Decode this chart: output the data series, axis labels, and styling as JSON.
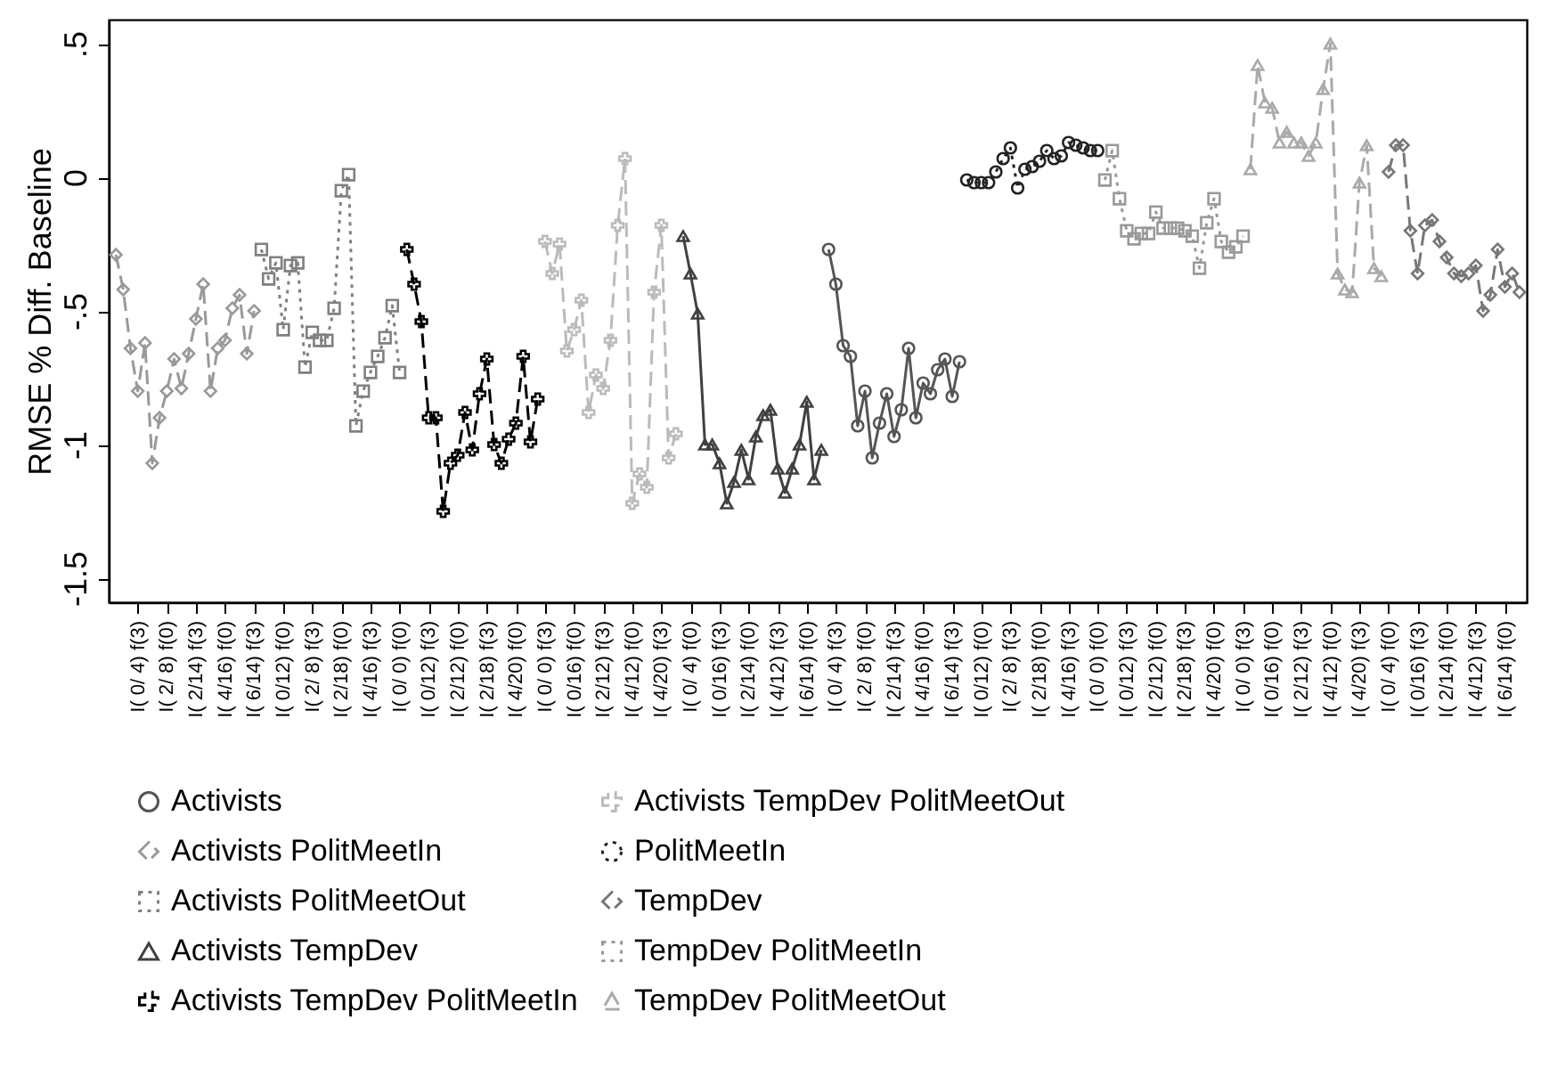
{
  "chart_data": {
    "type": "line",
    "ylabel": "RMSE % Diff. Baseline",
    "legend": "bottom",
    "categories": [
      null,
      null,
      null,
      "I( 0/ 4) f(3)",
      null,
      null,
      null,
      "I( 2/ 8) f(0)",
      null,
      null,
      null,
      "I( 2/14) f(3)",
      null,
      null,
      null,
      "I( 4/16) f(0)",
      null,
      null,
      null,
      "I( 6/14) f(3)",
      null,
      null,
      null,
      "I( 0/12) f(0)",
      null,
      null,
      null,
      "I( 2/ 8) f(3)",
      null,
      null,
      null,
      "I( 2/18) f(0)",
      null,
      null,
      null,
      "I( 4/16) f(3)",
      null,
      null,
      null,
      "I( 0/ 0) f(0)",
      null,
      null,
      null,
      "I( 0/12) f(3)",
      null,
      null,
      null,
      "I( 2/12) f(0)",
      null,
      null,
      null,
      "I( 2/18) f(3)",
      null,
      null,
      null,
      "I( 4/20) f(0)",
      null,
      null,
      null,
      "I( 0/ 0) f(3)",
      null,
      null,
      null,
      "I( 0/16) f(0)",
      null,
      null,
      null,
      "I( 2/12) f(3)",
      null,
      null,
      null,
      "I( 4/12) f(0)",
      null,
      null,
      null,
      "I( 4/20) f(3)",
      null,
      null,
      null,
      "I( 0/ 4) f(0)",
      null,
      null,
      null,
      "I( 0/16) f(3)",
      null,
      null,
      null,
      "I( 2/14) f(0)",
      null,
      null,
      null,
      "I( 4/12) f(3)",
      null,
      null,
      null,
      "I( 6/14) f(0)",
      null,
      null,
      null,
      "I( 0/ 4) f(3)",
      null,
      null,
      null,
      "I( 2/ 8) f(0)",
      null,
      null,
      null,
      "I( 2/14) f(3)",
      null,
      null,
      null,
      "I( 4/16) f(0)",
      null,
      null,
      null,
      "I( 6/14) f(3)",
      null,
      null,
      null,
      "I( 0/12) f(0)",
      null,
      null,
      null,
      "I( 2/ 8) f(3)",
      null,
      null,
      null,
      "I( 2/18) f(0)",
      null,
      null,
      null,
      "I( 4/16) f(3)",
      null,
      null,
      null,
      "I( 0/ 0) f(0)",
      null,
      null,
      null,
      "I( 0/12) f(3)",
      null,
      null,
      null,
      "I( 2/12) f(0)",
      null,
      null,
      null,
      "I( 2/18) f(3)",
      null,
      null,
      null,
      "I( 4/20) f(0)",
      null,
      null,
      null,
      "I( 0/ 0) f(3)",
      null,
      null,
      null,
      "I( 0/16) f(0)",
      null,
      null,
      null,
      "I( 2/12) f(3)",
      null,
      null,
      null,
      "I( 4/12) f(0)",
      null,
      null,
      null,
      "I( 4/20) f(3)",
      null,
      null,
      null,
      "I( 0/ 4) f(0)",
      null,
      null,
      null,
      "I( 0/16) f(3)",
      null,
      null,
      null,
      "I( 2/14) f(0)",
      null,
      null,
      null,
      "I( 4/12) f(3)",
      null,
      null,
      null,
      "I( 6/14) f(0)",
      null,
      null
    ],
    "ylim": [
      -1.59,
      0.59
    ],
    "yticks": [
      {
        "value": 0.5,
        "label": ".5"
      },
      {
        "value": 0,
        "label": "0"
      },
      {
        "value": -0.5,
        "label": "-.5"
      },
      {
        "value": -1,
        "label": "-1"
      },
      {
        "value": -1.5,
        "label": "-1.5"
      }
    ],
    "series": [
      {
        "name": "Activists",
        "color": "#555555",
        "marker": "circle",
        "line_style": "solid",
        "values": [
          null,
          null,
          null,
          null,
          null,
          null,
          null,
          null,
          null,
          null,
          null,
          null,
          null,
          null,
          null,
          null,
          null,
          null,
          null,
          null,
          null,
          null,
          null,
          null,
          null,
          null,
          null,
          null,
          null,
          null,
          null,
          null,
          null,
          null,
          null,
          null,
          null,
          null,
          null,
          null,
          null,
          null,
          null,
          null,
          null,
          null,
          null,
          null,
          null,
          null,
          null,
          null,
          null,
          null,
          null,
          null,
          null,
          null,
          null,
          null,
          null,
          null,
          null,
          null,
          null,
          null,
          null,
          null,
          null,
          null,
          null,
          null,
          null,
          null,
          null,
          null,
          null,
          null,
          null,
          null,
          null,
          null,
          null,
          null,
          null,
          null,
          null,
          null,
          null,
          null,
          null,
          null,
          null,
          null,
          null,
          null,
          null,
          null,
          -0.27,
          -0.4,
          -0.63,
          -0.67,
          -0.93,
          -0.8,
          -1.05,
          -0.92,
          -0.81,
          -0.97,
          -0.87,
          -0.64,
          -0.9,
          -0.77,
          -0.81,
          -0.72,
          -0.68,
          -0.82,
          -0.69,
          null,
          null,
          null,
          null,
          null,
          null,
          null,
          null,
          null,
          null,
          null,
          null,
          null,
          null,
          null,
          null,
          null,
          null,
          null,
          null,
          null,
          null,
          null,
          null,
          null,
          null,
          null,
          null,
          null,
          null,
          null,
          null,
          null,
          null,
          null,
          null,
          null,
          null,
          null,
          null,
          null,
          null,
          null,
          null,
          null,
          null,
          null,
          null,
          null,
          null,
          null,
          null,
          null,
          null,
          null,
          null,
          null,
          null,
          null,
          null,
          null,
          null,
          null,
          null,
          null,
          null,
          null,
          null,
          null,
          null,
          null,
          null,
          null,
          null,
          null,
          null,
          null
        ]
      },
      {
        "name": "Activists PolitMeetIn",
        "color": "#999999",
        "marker": "diamond",
        "line_style": "dashed",
        "values": [
          -0.29,
          -0.42,
          -0.64,
          -0.8,
          -0.62,
          -1.07,
          -0.9,
          -0.8,
          -0.68,
          -0.79,
          -0.66,
          -0.53,
          -0.4,
          -0.8,
          -0.64,
          -0.61,
          -0.49,
          -0.44,
          -0.66,
          -0.5,
          null,
          null,
          null,
          null,
          null,
          null,
          null,
          null,
          null,
          null,
          null,
          null,
          null,
          null,
          null,
          null,
          null,
          null,
          null,
          null,
          null,
          null,
          null,
          null,
          null,
          null,
          null,
          null,
          null,
          null,
          null,
          null,
          null,
          null,
          null,
          null,
          null,
          null,
          null,
          null,
          null,
          null,
          null,
          null,
          null,
          null,
          null,
          null,
          null,
          null,
          null,
          null,
          null,
          null,
          null,
          null,
          null,
          null,
          null,
          null,
          null,
          null,
          null,
          null,
          null,
          null,
          null,
          null,
          null,
          null,
          null,
          null,
          null,
          null,
          null,
          null,
          null,
          null,
          null,
          null,
          null,
          null,
          null,
          null,
          null,
          null,
          null,
          null,
          null,
          null,
          null,
          null,
          null,
          null,
          null,
          null,
          null,
          null,
          null,
          null,
          null,
          null,
          null,
          null,
          null,
          null,
          null,
          null,
          null,
          null,
          null,
          null,
          null,
          null,
          null,
          null,
          null,
          null,
          null,
          null,
          null,
          null,
          null,
          null,
          null,
          null,
          null,
          null,
          null,
          null,
          null,
          null,
          null,
          null,
          null,
          null,
          null,
          null,
          null,
          null,
          null,
          null,
          null,
          null,
          null,
          null,
          null,
          null,
          null,
          null,
          null,
          null,
          null,
          null,
          null,
          null,
          null,
          null,
          null,
          null,
          null,
          null,
          null,
          null,
          null,
          null,
          null,
          null,
          null,
          null,
          null,
          null,
          null,
          null
        ]
      },
      {
        "name": "Activists PolitMeetOut",
        "color": "#808080",
        "marker": "square",
        "line_style": "dotted",
        "values": [
          null,
          null,
          null,
          null,
          null,
          null,
          null,
          null,
          null,
          null,
          null,
          null,
          null,
          null,
          null,
          null,
          null,
          null,
          null,
          null,
          -0.27,
          -0.38,
          -0.32,
          -0.57,
          -0.33,
          -0.32,
          -0.71,
          -0.58,
          -0.61,
          -0.61,
          -0.49,
          -0.05,
          0.01,
          -0.93,
          -0.8,
          -0.73,
          -0.67,
          -0.6,
          -0.48,
          -0.73,
          null,
          null,
          null,
          null,
          null,
          null,
          null,
          null,
          null,
          null,
          null,
          null,
          null,
          null,
          null,
          null,
          null,
          null,
          null,
          null,
          null,
          null,
          null,
          null,
          null,
          null,
          null,
          null,
          null,
          null,
          null,
          null,
          null,
          null,
          null,
          null,
          null,
          null,
          null,
          null,
          null,
          null,
          null,
          null,
          null,
          null,
          null,
          null,
          null,
          null,
          null,
          null,
          null,
          null,
          null,
          null,
          null,
          null,
          null,
          null,
          null,
          null,
          null,
          null,
          null,
          null,
          null,
          null,
          null,
          null,
          null,
          null,
          null,
          null,
          null,
          null,
          null,
          null,
          null,
          null,
          null,
          null,
          null,
          null,
          null,
          null,
          null,
          null,
          null,
          null,
          null,
          null,
          null,
          null,
          null,
          null,
          null,
          null,
          null,
          null,
          null,
          null,
          null,
          null,
          null,
          null,
          null,
          null,
          null,
          null,
          null,
          null,
          null,
          null,
          null,
          null,
          null,
          null,
          null,
          null,
          null,
          null,
          null,
          null,
          null,
          null,
          null,
          null,
          null,
          null,
          null,
          null,
          null,
          null,
          null,
          null,
          null,
          null,
          null,
          null,
          null,
          null,
          null,
          null,
          null,
          null,
          null,
          null,
          null,
          null,
          null,
          null,
          null,
          null
        ]
      },
      {
        "name": "Activists TempDev",
        "color": "#404040",
        "marker": "triangle",
        "line_style": "solid",
        "values": [
          null,
          null,
          null,
          null,
          null,
          null,
          null,
          null,
          null,
          null,
          null,
          null,
          null,
          null,
          null,
          null,
          null,
          null,
          null,
          null,
          null,
          null,
          null,
          null,
          null,
          null,
          null,
          null,
          null,
          null,
          null,
          null,
          null,
          null,
          null,
          null,
          null,
          null,
          null,
          null,
          null,
          null,
          null,
          null,
          null,
          null,
          null,
          null,
          null,
          null,
          null,
          null,
          null,
          null,
          null,
          null,
          null,
          null,
          null,
          null,
          null,
          null,
          null,
          null,
          null,
          null,
          null,
          null,
          null,
          null,
          null,
          null,
          null,
          null,
          null,
          null,
          null,
          null,
          -0.22,
          -0.36,
          -0.51,
          -1.0,
          -1.0,
          -1.07,
          -1.22,
          -1.14,
          -1.02,
          -1.13,
          -0.97,
          -0.89,
          -0.87,
          -1.09,
          -1.18,
          -1.09,
          -1.0,
          -0.84,
          -1.13,
          -1.02,
          null,
          null,
          null,
          null,
          null,
          null,
          null,
          null,
          null,
          null,
          null,
          null,
          null,
          null,
          null,
          null,
          null,
          null,
          null,
          null,
          null,
          null,
          null,
          null,
          null,
          null,
          null,
          null,
          null,
          null,
          null,
          null,
          null,
          null,
          null,
          null,
          null,
          null,
          null,
          null,
          null,
          null,
          null,
          null,
          null,
          null,
          null,
          null,
          null,
          null,
          null,
          null,
          null,
          null,
          null,
          null,
          null,
          null,
          null,
          null,
          null,
          null,
          null,
          null,
          null,
          null,
          null,
          null,
          null,
          null,
          null,
          null,
          null,
          null,
          null,
          null,
          null,
          null,
          null,
          null,
          null,
          null,
          null,
          null,
          null,
          null,
          null,
          null,
          null,
          null,
          null,
          null,
          null,
          null,
          null,
          null
        ]
      },
      {
        "name": "Activists TempDev PolitMeetIn",
        "color": "#000000",
        "marker": "cross",
        "line_style": "dashed",
        "values": [
          null,
          null,
          null,
          null,
          null,
          null,
          null,
          null,
          null,
          null,
          null,
          null,
          null,
          null,
          null,
          null,
          null,
          null,
          null,
          null,
          null,
          null,
          null,
          null,
          null,
          null,
          null,
          null,
          null,
          null,
          null,
          null,
          null,
          null,
          null,
          null,
          null,
          null,
          null,
          null,
          -0.27,
          -0.4,
          -0.54,
          -0.9,
          -0.9,
          -1.25,
          -1.07,
          -1.04,
          -0.88,
          -1.02,
          -0.81,
          -0.68,
          -1.0,
          -1.07,
          -0.98,
          -0.92,
          -0.67,
          -0.99,
          -0.83,
          null,
          null,
          null,
          null,
          null,
          null,
          null,
          null,
          null,
          null,
          null,
          null,
          null,
          null,
          null,
          null,
          null,
          null,
          null,
          null,
          null,
          null,
          null,
          null,
          null,
          null,
          null,
          null,
          null,
          null,
          null,
          null,
          null,
          null,
          null,
          null,
          null,
          null,
          null,
          null,
          null,
          null,
          null,
          null,
          null,
          null,
          null,
          null,
          null,
          null,
          null,
          null,
          null,
          null,
          null,
          null,
          null,
          null,
          null,
          null,
          null,
          null,
          null,
          null,
          null,
          null,
          null,
          null,
          null,
          null,
          null,
          null,
          null,
          null,
          null,
          null,
          null,
          null,
          null,
          null,
          null,
          null,
          null,
          null,
          null,
          null,
          null,
          null,
          null,
          null,
          null,
          null,
          null,
          null,
          null,
          null,
          null,
          null,
          null,
          null,
          null,
          null,
          null,
          null,
          null,
          null,
          null,
          null,
          null,
          null,
          null,
          null,
          null,
          null,
          null,
          null,
          null,
          null,
          null,
          null,
          null,
          null,
          null,
          null,
          null,
          null,
          null,
          null,
          null,
          null,
          null,
          null,
          null,
          null,
          null
        ]
      },
      {
        "name": "Activists TempDev PolitMeetOut",
        "color": "#bbbbbb",
        "marker": "cross",
        "line_style": "dashed",
        "values": [
          null,
          null,
          null,
          null,
          null,
          null,
          null,
          null,
          null,
          null,
          null,
          null,
          null,
          null,
          null,
          null,
          null,
          null,
          null,
          null,
          null,
          null,
          null,
          null,
          null,
          null,
          null,
          null,
          null,
          null,
          null,
          null,
          null,
          null,
          null,
          null,
          null,
          null,
          null,
          null,
          null,
          null,
          null,
          null,
          null,
          null,
          null,
          null,
          null,
          null,
          null,
          null,
          null,
          null,
          null,
          null,
          null,
          null,
          null,
          -0.24,
          -0.36,
          -0.25,
          -0.65,
          -0.57,
          -0.46,
          -0.88,
          -0.74,
          -0.79,
          -0.61,
          -0.18,
          0.07,
          -1.22,
          -1.11,
          -1.16,
          -0.43,
          -0.18,
          -1.05,
          -0.96,
          null,
          null,
          null,
          null,
          null,
          null,
          null,
          null,
          null,
          null,
          null,
          null,
          null,
          null,
          null,
          null,
          null,
          null,
          null,
          null,
          null,
          null,
          null,
          null,
          null,
          null,
          null,
          null,
          null,
          null,
          null,
          null,
          null,
          null,
          null,
          null,
          null,
          null,
          null,
          null,
          null,
          null,
          null,
          null,
          null,
          null,
          null,
          null,
          null,
          null,
          null,
          null,
          null,
          null,
          null,
          null,
          null,
          null,
          null,
          null,
          null,
          null,
          null,
          null,
          null,
          null,
          null,
          null,
          null,
          null,
          null,
          null,
          null,
          null,
          null,
          null,
          null,
          null,
          null,
          null,
          null,
          null,
          null,
          null,
          null,
          null,
          null,
          null,
          null,
          null,
          null,
          null,
          null,
          null,
          null,
          null,
          null,
          null,
          null,
          null,
          null,
          null,
          null,
          null,
          null,
          null,
          null,
          null,
          null,
          null,
          null,
          null,
          null,
          null,
          null,
          null
        ]
      },
      {
        "name": "PolitMeetIn",
        "color": "#222222",
        "marker": "circle",
        "line_style": "dotted",
        "values": [
          null,
          null,
          null,
          null,
          null,
          null,
          null,
          null,
          null,
          null,
          null,
          null,
          null,
          null,
          null,
          null,
          null,
          null,
          null,
          null,
          null,
          null,
          null,
          null,
          null,
          null,
          null,
          null,
          null,
          null,
          null,
          null,
          null,
          null,
          null,
          null,
          null,
          null,
          null,
          null,
          null,
          null,
          null,
          null,
          null,
          null,
          null,
          null,
          null,
          null,
          null,
          null,
          null,
          null,
          null,
          null,
          null,
          null,
          null,
          null,
          null,
          null,
          null,
          null,
          null,
          null,
          null,
          null,
          null,
          null,
          null,
          null,
          null,
          null,
          null,
          null,
          null,
          null,
          null,
          null,
          null,
          null,
          null,
          null,
          null,
          null,
          null,
          null,
          null,
          null,
          null,
          null,
          null,
          null,
          null,
          null,
          null,
          null,
          null,
          null,
          null,
          null,
          null,
          null,
          null,
          null,
          null,
          null,
          null,
          null,
          null,
          null,
          null,
          null,
          null,
          null,
          null,
          -0.01,
          -0.02,
          -0.02,
          -0.02,
          0.02,
          0.07,
          0.11,
          -0.04,
          0.03,
          0.04,
          0.06,
          0.1,
          0.07,
          0.08,
          0.13,
          0.12,
          0.11,
          0.1,
          0.1,
          null,
          null,
          null,
          null,
          null,
          null,
          null,
          null,
          null,
          null,
          null,
          null,
          null,
          null,
          null,
          null,
          null,
          null,
          null,
          null,
          null,
          null,
          null,
          null,
          null,
          null,
          null,
          null,
          null,
          null,
          null,
          null,
          null,
          null,
          null,
          null,
          null,
          null,
          null,
          null,
          null,
          null,
          null,
          null,
          null,
          null,
          null,
          null,
          null,
          null,
          null,
          null,
          null,
          null,
          null,
          null,
          null,
          null
        ]
      },
      {
        "name": "TempDev",
        "color": "#777777",
        "marker": "diamond",
        "line_style": "dashed",
        "values": [
          null,
          null,
          null,
          null,
          null,
          null,
          null,
          null,
          null,
          null,
          null,
          null,
          null,
          null,
          null,
          null,
          null,
          null,
          null,
          null,
          null,
          null,
          null,
          null,
          null,
          null,
          null,
          null,
          null,
          null,
          null,
          null,
          null,
          null,
          null,
          null,
          null,
          null,
          null,
          null,
          null,
          null,
          null,
          null,
          null,
          null,
          null,
          null,
          null,
          null,
          null,
          null,
          null,
          null,
          null,
          null,
          null,
          null,
          null,
          null,
          null,
          null,
          null,
          null,
          null,
          null,
          null,
          null,
          null,
          null,
          null,
          null,
          null,
          null,
          null,
          null,
          null,
          null,
          null,
          null,
          null,
          null,
          null,
          null,
          null,
          null,
          null,
          null,
          null,
          null,
          null,
          null,
          null,
          null,
          null,
          null,
          null,
          null,
          null,
          null,
          null,
          null,
          null,
          null,
          null,
          null,
          null,
          null,
          null,
          null,
          null,
          null,
          null,
          null,
          null,
          null,
          null,
          null,
          null,
          null,
          null,
          null,
          null,
          null,
          null,
          null,
          null,
          null,
          null,
          null,
          null,
          null,
          null,
          null,
          null,
          null,
          null,
          null,
          null,
          null,
          null,
          null,
          null,
          null,
          null,
          null,
          null,
          null,
          null,
          null,
          null,
          null,
          null,
          null,
          null,
          null,
          null,
          null,
          null,
          null,
          null,
          null,
          null,
          null,
          null,
          null,
          null,
          null,
          null,
          null,
          null,
          null,
          null,
          null,
          null,
          0.02,
          0.12,
          0.12,
          -0.2,
          -0.36,
          -0.18,
          -0.16,
          -0.24,
          -0.3,
          -0.36,
          -0.37,
          -0.36,
          -0.33,
          -0.5,
          -0.44,
          -0.27,
          -0.41,
          -0.36,
          -0.43
        ]
      },
      {
        "name": "TempDev PolitMeetIn",
        "color": "#999999",
        "marker": "square",
        "line_style": "dotted",
        "values": [
          null,
          null,
          null,
          null,
          null,
          null,
          null,
          null,
          null,
          null,
          null,
          null,
          null,
          null,
          null,
          null,
          null,
          null,
          null,
          null,
          null,
          null,
          null,
          null,
          null,
          null,
          null,
          null,
          null,
          null,
          null,
          null,
          null,
          null,
          null,
          null,
          null,
          null,
          null,
          null,
          null,
          null,
          null,
          null,
          null,
          null,
          null,
          null,
          null,
          null,
          null,
          null,
          null,
          null,
          null,
          null,
          null,
          null,
          null,
          null,
          null,
          null,
          null,
          null,
          null,
          null,
          null,
          null,
          null,
          null,
          null,
          null,
          null,
          null,
          null,
          null,
          null,
          null,
          null,
          null,
          null,
          null,
          null,
          null,
          null,
          null,
          null,
          null,
          null,
          null,
          null,
          null,
          null,
          null,
          null,
          null,
          null,
          null,
          null,
          null,
          null,
          null,
          null,
          null,
          null,
          null,
          null,
          null,
          null,
          null,
          null,
          null,
          null,
          null,
          null,
          null,
          null,
          null,
          null,
          null,
          null,
          null,
          null,
          null,
          null,
          null,
          null,
          null,
          null,
          null,
          null,
          null,
          null,
          null,
          null,
          null,
          -0.01,
          0.1,
          -0.08,
          -0.2,
          -0.23,
          -0.21,
          -0.21,
          -0.13,
          -0.19,
          -0.19,
          -0.19,
          -0.2,
          -0.22,
          -0.34,
          -0.17,
          -0.08,
          -0.24,
          -0.28,
          -0.26,
          -0.22,
          null,
          null,
          null,
          null,
          null,
          null,
          null,
          null,
          null,
          null,
          null,
          null,
          null,
          null,
          null,
          null,
          null,
          null,
          null,
          null,
          null,
          null,
          null,
          null,
          null,
          null,
          null,
          null,
          null,
          null,
          null,
          null,
          null,
          null,
          null,
          null,
          null,
          null
        ]
      },
      {
        "name": "TempDev PolitMeetOut",
        "color": "#aaaaaa",
        "marker": "triangle",
        "line_style": "dashed",
        "values": [
          null,
          null,
          null,
          null,
          null,
          null,
          null,
          null,
          null,
          null,
          null,
          null,
          null,
          null,
          null,
          null,
          null,
          null,
          null,
          null,
          null,
          null,
          null,
          null,
          null,
          null,
          null,
          null,
          null,
          null,
          null,
          null,
          null,
          null,
          null,
          null,
          null,
          null,
          null,
          null,
          null,
          null,
          null,
          null,
          null,
          null,
          null,
          null,
          null,
          null,
          null,
          null,
          null,
          null,
          null,
          null,
          null,
          null,
          null,
          null,
          null,
          null,
          null,
          null,
          null,
          null,
          null,
          null,
          null,
          null,
          null,
          null,
          null,
          null,
          null,
          null,
          null,
          null,
          null,
          null,
          null,
          null,
          null,
          null,
          null,
          null,
          null,
          null,
          null,
          null,
          null,
          null,
          null,
          null,
          null,
          null,
          null,
          null,
          null,
          null,
          null,
          null,
          null,
          null,
          null,
          null,
          null,
          null,
          null,
          null,
          null,
          null,
          null,
          null,
          null,
          null,
          null,
          null,
          null,
          null,
          null,
          null,
          null,
          null,
          null,
          null,
          null,
          null,
          null,
          null,
          null,
          null,
          null,
          null,
          null,
          null,
          null,
          null,
          null,
          null,
          null,
          null,
          null,
          null,
          null,
          null,
          null,
          null,
          null,
          null,
          null,
          null,
          null,
          null,
          null,
          null,
          0.03,
          0.42,
          0.28,
          0.26,
          0.13,
          0.17,
          0.13,
          0.13,
          0.08,
          0.13,
          0.33,
          0.5,
          -0.36,
          -0.42,
          -0.43,
          -0.02,
          0.12,
          -0.34,
          -0.37,
          null,
          null,
          null,
          null,
          null,
          null,
          null,
          null,
          null,
          null,
          null,
          null,
          null,
          null,
          null,
          null,
          null,
          null,
          null
        ]
      }
    ]
  }
}
